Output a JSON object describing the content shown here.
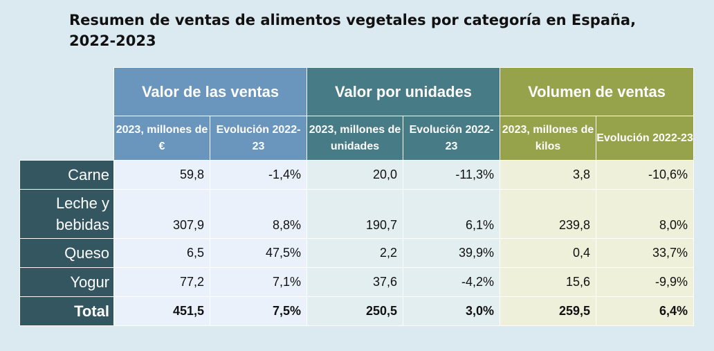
{
  "title": "Resumen de ventas de alimentos vegetales por categoría en España, 2022-2023",
  "groups": {
    "g1": "Valor de las ventas",
    "g2": "Valor por unidades",
    "g3": "Volumen de ventas"
  },
  "subheaders": {
    "g1_a": "2023, millones de €",
    "g1_b": "Evolución 2022-23",
    "g2_a": "2023, millones de unidades",
    "g2_b": "Evolución 2022-23",
    "g3_a": "2023, millones de kilos",
    "g3_b": "Evolución 2022-23"
  },
  "colors": {
    "valor_ventas": "#6a96bd",
    "valor_unidades": "#477b86",
    "volumen_ventas": "#96a34a",
    "row_labels": "#345660"
  },
  "chart_data": {
    "type": "table",
    "columns": [
      "2023, millones de €",
      "Evolución 2022-23",
      "2023, millones de unidades",
      "Evolución 2022-23",
      "2023, millones de kilos",
      "Evolución 2022-23"
    ],
    "rows": [
      {
        "label": "Carne",
        "values": [
          "59,8",
          "-1,4%",
          "20,0",
          "-11,3%",
          "3,8",
          "-10,6%"
        ]
      },
      {
        "label": "Leche y bebidas",
        "values": [
          "307,9",
          "8,8%",
          "190,7",
          "6,1%",
          "239,8",
          "8,0%"
        ]
      },
      {
        "label": "Queso",
        "values": [
          "6,5",
          "47,5%",
          "2,2",
          "39,9%",
          "0,4",
          "33,7%"
        ]
      },
      {
        "label": "Yogur",
        "values": [
          "77,2",
          "7,1%",
          "37,6",
          "-4,2%",
          "15,6",
          "-9,9%"
        ]
      },
      {
        "label": "Total",
        "values": [
          "451,5",
          "7,5%",
          "250,5",
          "3,0%",
          "259,5",
          "6,4%"
        ]
      }
    ]
  }
}
